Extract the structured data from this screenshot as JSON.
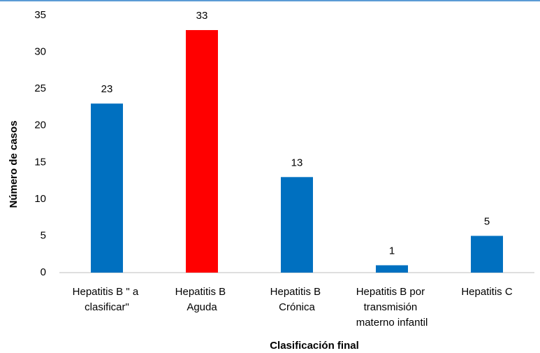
{
  "chart_data": {
    "type": "bar",
    "categories": [
      "Hepatitis B \" a clasificar\"",
      "Hepatitis B Aguda",
      "Hepatitis B Crónica",
      "Hepatitis B por transmisión materno infantil",
      "Hepatitis C"
    ],
    "values": [
      23,
      33,
      13,
      1,
      5
    ],
    "colors": [
      "#0070c0",
      "#ff0000",
      "#0070c0",
      "#0070c0",
      "#0070c0"
    ],
    "ylim": [
      0,
      35
    ],
    "yticks": [
      0,
      5,
      10,
      15,
      20,
      25,
      30,
      35
    ],
    "xlabel": "Clasificación final",
    "ylabel": "Número de casos",
    "grid": false
  }
}
